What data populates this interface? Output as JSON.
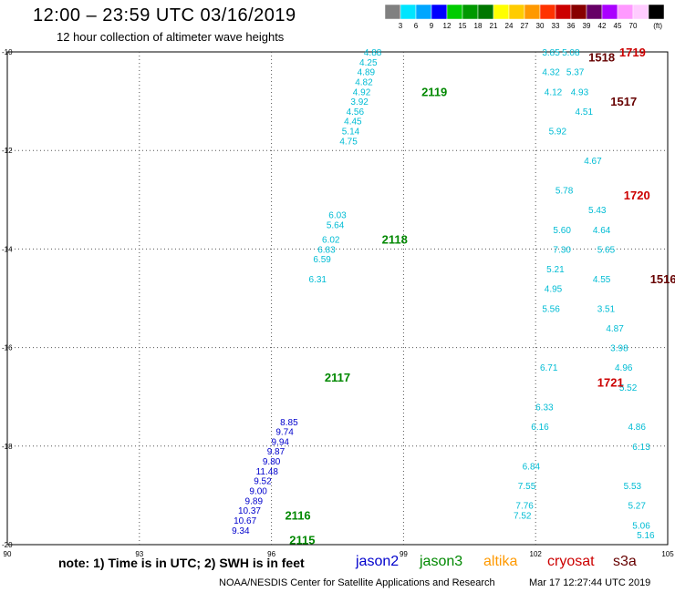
{
  "header": {
    "title": "12:00 – 23:59 UTC 03/16/2019",
    "subtitle": "12 hour collection of altimeter wave heights"
  },
  "legend_scale": {
    "values": [
      "3",
      "6",
      "9",
      "12",
      "15",
      "18",
      "21",
      "24",
      "27",
      "30",
      "33",
      "36",
      "39",
      "42",
      "45",
      "70"
    ],
    "unit": "(ft)",
    "colors": [
      "#808080",
      "#00e5ff",
      "#00a6ff",
      "#0000ff",
      "#00cc00",
      "#009900",
      "#007700",
      "#ffff00",
      "#ffcc00",
      "#ff9900",
      "#ff3300",
      "#cc0000",
      "#880000",
      "#660066",
      "#aa00ff",
      "#ff99ff",
      "#ffccff",
      "#000000"
    ]
  },
  "chart_data": {
    "type": "scatter",
    "xlim": [
      90,
      105
    ],
    "ylim": [
      -20,
      -10
    ],
    "x_ticks": [
      "90",
      "93",
      "96",
      "99",
      "102",
      "105"
    ],
    "y_ticks": [
      "-10",
      "-12",
      "-14",
      "-16",
      "-18",
      "-20"
    ],
    "grid": true,
    "tracks": [
      {
        "satellite": "jason3",
        "color": "#00bcd4",
        "points": [
          [
            98.3,
            -10.0,
            "4.88"
          ],
          [
            98.2,
            -10.2,
            "4.25"
          ],
          [
            98.15,
            -10.4,
            "4.89"
          ],
          [
            98.1,
            -10.6,
            "4.82"
          ],
          [
            98.05,
            -10.8,
            "4.92"
          ],
          [
            98.0,
            -11.0,
            "3.92"
          ],
          [
            97.9,
            -11.2,
            "4.56"
          ],
          [
            97.85,
            -11.4,
            "4.45"
          ],
          [
            97.8,
            -11.6,
            "5.14"
          ],
          [
            97.75,
            -11.8,
            "4.75"
          ]
        ]
      },
      {
        "satellite": "jason3",
        "color": "#00bcd4",
        "points": [
          [
            97.5,
            -13.3,
            "6.03"
          ],
          [
            97.45,
            -13.5,
            "5.64"
          ],
          [
            97.35,
            -13.8,
            "6.02"
          ],
          [
            97.25,
            -14.0,
            "6.83"
          ],
          [
            97.15,
            -14.2,
            "6.59"
          ],
          [
            97.05,
            -14.6,
            "6.31"
          ]
        ]
      },
      {
        "satellite": "jason2",
        "color": "#0000cc",
        "points": [
          [
            96.4,
            -17.5,
            "8.85"
          ],
          [
            96.3,
            -17.7,
            "9.74"
          ],
          [
            96.2,
            -17.9,
            "9.94"
          ],
          [
            96.1,
            -18.1,
            "9.87"
          ],
          [
            96.0,
            -18.3,
            "9.80"
          ],
          [
            95.9,
            -18.5,
            "11.48"
          ],
          [
            95.8,
            -18.7,
            "9.52"
          ],
          [
            95.7,
            -18.9,
            "9.00"
          ],
          [
            95.6,
            -19.1,
            "9.89"
          ],
          [
            95.5,
            -19.3,
            "10.37"
          ],
          [
            95.4,
            -19.5,
            "10.67"
          ],
          [
            95.3,
            -19.7,
            "9.34"
          ]
        ]
      },
      {
        "satellite": "cryosat",
        "color": "#00bcd4",
        "points": [
          [
            102.35,
            -10.0,
            "3.85"
          ],
          [
            102.35,
            -10.4,
            "4.32"
          ],
          [
            102.4,
            -10.8,
            "4.12"
          ],
          [
            102.5,
            -11.6,
            "5.92"
          ],
          [
            102.65,
            -12.8,
            "5.78"
          ],
          [
            102.6,
            -13.6,
            "5.60"
          ],
          [
            102.6,
            -14.0,
            "7.30"
          ],
          [
            102.45,
            -14.4,
            "5.21"
          ],
          [
            102.4,
            -14.8,
            "4.95"
          ],
          [
            102.35,
            -15.2,
            "5.56"
          ],
          [
            102.3,
            -16.4,
            "6.71"
          ],
          [
            102.2,
            -17.2,
            "6.33"
          ],
          [
            102.1,
            -17.6,
            "6.16"
          ],
          [
            101.9,
            -18.4,
            "6.84"
          ],
          [
            101.8,
            -18.8,
            "7.55"
          ],
          [
            101.75,
            -19.2,
            "7.76"
          ],
          [
            101.7,
            -19.4,
            "7.52"
          ]
        ]
      },
      {
        "satellite": "s3a",
        "color": "#00bcd4",
        "points": [
          [
            102.8,
            -10.0,
            "5.08"
          ],
          [
            102.9,
            -10.4,
            "5.37"
          ],
          [
            103.0,
            -10.8,
            "4.93"
          ],
          [
            103.1,
            -11.2,
            "4.51"
          ],
          [
            103.3,
            -12.2,
            "4.67"
          ],
          [
            103.4,
            -13.2,
            "5.43"
          ],
          [
            103.5,
            -13.6,
            "4.64"
          ],
          [
            103.6,
            -14.0,
            "5.65"
          ],
          [
            103.5,
            -14.6,
            "4.55"
          ],
          [
            103.6,
            -15.2,
            "3.51"
          ],
          [
            103.8,
            -15.6,
            "4.87"
          ],
          [
            103.9,
            -16.0,
            "3.98"
          ],
          [
            104.0,
            -16.4,
            "4.96"
          ],
          [
            104.1,
            -16.8,
            "5.52"
          ],
          [
            104.3,
            -17.6,
            "4.86"
          ],
          [
            104.4,
            -18.0,
            "6.13"
          ],
          [
            104.2,
            -18.8,
            "5.53"
          ],
          [
            104.3,
            -19.2,
            "5.27"
          ],
          [
            104.4,
            -19.6,
            "5.06"
          ],
          [
            104.5,
            -19.8,
            "5.16"
          ]
        ]
      }
    ],
    "pass_labels": [
      {
        "text": "2119",
        "x": 99.7,
        "y": -10.8,
        "color": "#008800"
      },
      {
        "text": "2118",
        "x": 98.8,
        "y": -13.8,
        "color": "#008800"
      },
      {
        "text": "2117",
        "x": 97.5,
        "y": -16.6,
        "color": "#008800"
      },
      {
        "text": "2116",
        "x": 96.6,
        "y": -19.4,
        "color": "#008800"
      },
      {
        "text": "2115",
        "x": 96.7,
        "y": -19.9,
        "color": "#008800"
      },
      {
        "text": "1518",
        "x": 103.5,
        "y": -10.1,
        "color": "#660000"
      },
      {
        "text": "1719",
        "x": 104.2,
        "y": -10.0,
        "color": "#cc0000"
      },
      {
        "text": "1517",
        "x": 104.0,
        "y": -11.0,
        "color": "#660000"
      },
      {
        "text": "1720",
        "x": 104.3,
        "y": -12.9,
        "color": "#cc0000"
      },
      {
        "text": "1516",
        "x": 104.9,
        "y": -14.6,
        "color": "#660000"
      },
      {
        "text": "1721",
        "x": 103.7,
        "y": -16.7,
        "color": "#cc0000"
      }
    ]
  },
  "footer": {
    "note": "note: 1) Time is in UTC; 2) SWH is in feet",
    "satellites": [
      {
        "name": "jason2",
        "color": "#0000cc"
      },
      {
        "name": "jason3",
        "color": "#008800"
      },
      {
        "name": "altika",
        "color": "#ff9900"
      },
      {
        "name": "cryosat",
        "color": "#cc0000"
      },
      {
        "name": "s3a",
        "color": "#660000"
      }
    ],
    "credit": "NOAA/NESDIS Center for Satellite Applications and Research",
    "timestamp": "Mar 17 12:27:44 UTC 2019"
  }
}
